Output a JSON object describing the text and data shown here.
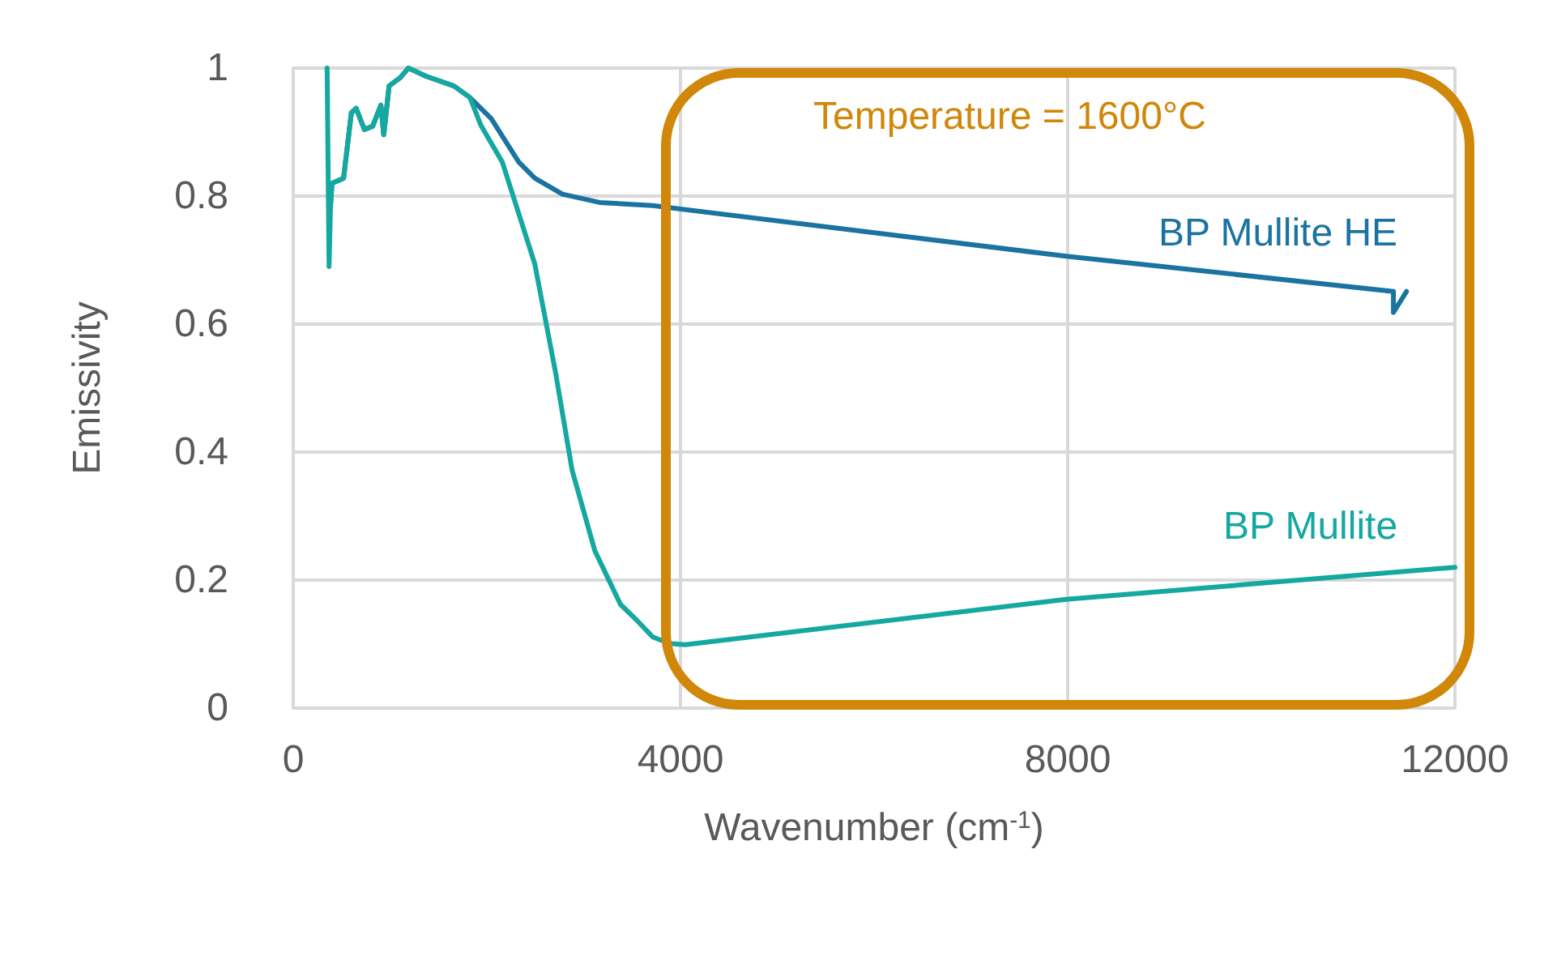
{
  "chart_data": {
    "type": "line",
    "xlabel": "Wavenumber (cm$^{-1}$)",
    "ylabel": "Emissivity",
    "annotations": [
      "Temperature = 1600°C"
    ],
    "xlim": [
      0,
      12000
    ],
    "xticks": [
      0,
      4000,
      8000,
      12000
    ],
    "ylim": [
      0,
      1
    ],
    "yticks": [
      0,
      0.2,
      0.4,
      0.6,
      0.8,
      1
    ],
    "grid": true,
    "legend": false,
    "marker": "none",
    "line_style": "solid",
    "series": [
      {
        "name": "BP Mullite HE",
        "color": "#1a73a0",
        "x": [
          385,
          400,
          520,
          600,
          650,
          735,
          820,
          905,
          935,
          990,
          1105,
          1190,
          1375,
          1660,
          1825,
          2045,
          2330,
          2495,
          2780,
          3165,
          3715,
          7985,
          11365,
          11365,
          11500
        ],
        "values": [
          0.785,
          0.82,
          0.828,
          0.93,
          0.937,
          0.904,
          0.909,
          0.942,
          0.896,
          0.972,
          0.985,
          1.0,
          0.987,
          0.972,
          0.954,
          0.921,
          0.853,
          0.828,
          0.803,
          0.79,
          0.785,
          0.706,
          0.651,
          0.618,
          0.651
        ]
      },
      {
        "name": "BP Mullite",
        "color": "#14a8a0",
        "x": [
          350,
          370,
          385,
          400,
          520,
          600,
          650,
          735,
          820,
          905,
          935,
          990,
          1105,
          1190,
          1375,
          1660,
          1825,
          1940,
          2160,
          2495,
          2710,
          2880,
          3115,
          3380,
          3550,
          3715,
          3885,
          4050,
          7985,
          12000
        ],
        "values": [
          1.0,
          0.69,
          0.785,
          0.82,
          0.828,
          0.93,
          0.937,
          0.904,
          0.909,
          0.942,
          0.896,
          0.972,
          0.985,
          1.0,
          0.987,
          0.972,
          0.954,
          0.91,
          0.853,
          0.694,
          0.524,
          0.372,
          0.246,
          0.162,
          0.137,
          0.111,
          0.101,
          0.099,
          0.17,
          0.22
        ]
      }
    ]
  }
}
